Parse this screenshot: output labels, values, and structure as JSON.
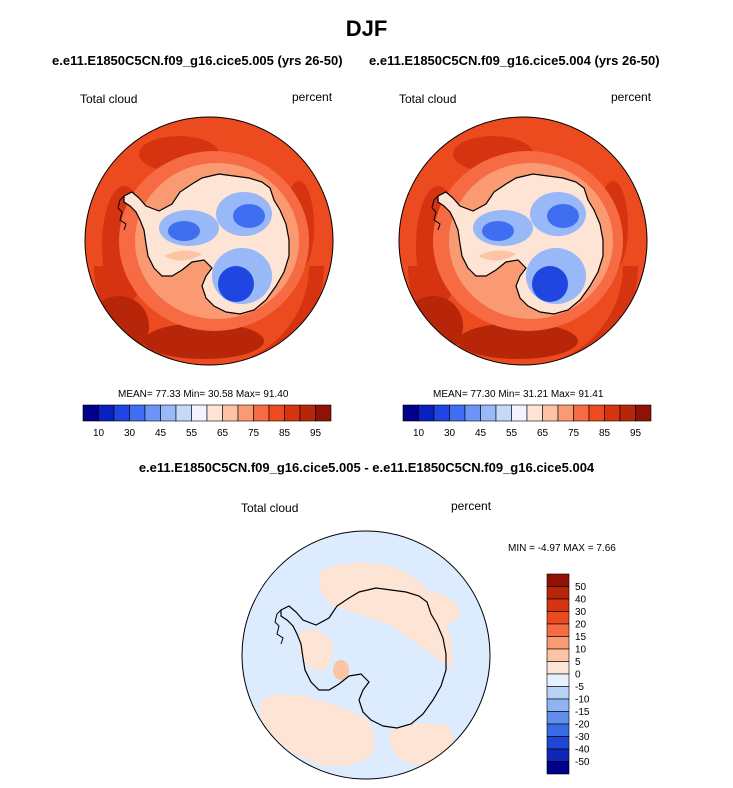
{
  "figure": {
    "title": "DJF",
    "top_subtitle_left": "e.e11.E1850C5CN.f09_g16.cice5.005 (yrs 26-50)",
    "top_subtitle_right": "e.e11.E1850C5CN.f09_g16.cice5.004 (yrs 26-50)",
    "diff_subtitle": "e.e11.E1850C5CN.f09_g16.cice5.005 - e.e11.E1850C5CN.f09_g16.cice5.004"
  },
  "panels": {
    "left": {
      "variable": "Total cloud",
      "units": "percent",
      "stats": "MEAN=  77.33  Min=  30.58  Max=  91.40"
    },
    "right": {
      "variable": "Total cloud",
      "units": "percent",
      "stats": "MEAN=  77.30  Min=  31.21  Max=  91.41"
    },
    "diff": {
      "variable": "Total cloud",
      "units": "percent",
      "stats": "MIN =  -4.97 MAX =   7.66"
    }
  },
  "chart_data": [
    {
      "type": "heatmap",
      "projection": "south polar stereographic",
      "variable": "Total cloud",
      "units": "percent",
      "mean": 77.33,
      "min": 30.58,
      "max": 91.4,
      "colorbar": {
        "tick_labels": [
          "10",
          "30",
          "45",
          "55",
          "65",
          "75",
          "85",
          "95"
        ],
        "colors": [
          "#00008b",
          "#0a1fc0",
          "#1f46e0",
          "#3f6ef0",
          "#6b95f5",
          "#98b8f8",
          "#c6d9fb",
          "#f2f5ff",
          "#fde4d4",
          "#fcc3a4",
          "#fa9a72",
          "#f66b44",
          "#ec4a1f",
          "#d63411",
          "#b8260a",
          "#8f1204"
        ]
      }
    },
    {
      "type": "heatmap",
      "projection": "south polar stereographic",
      "variable": "Total cloud",
      "units": "percent",
      "mean": 77.3,
      "min": 31.21,
      "max": 91.41,
      "colorbar": {
        "tick_labels": [
          "10",
          "30",
          "45",
          "55",
          "65",
          "75",
          "85",
          "95"
        ],
        "colors": [
          "#00008b",
          "#0a1fc0",
          "#1f46e0",
          "#3f6ef0",
          "#6b95f5",
          "#98b8f8",
          "#c6d9fb",
          "#f2f5ff",
          "#fde4d4",
          "#fcc3a4",
          "#fa9a72",
          "#f66b44",
          "#ec4a1f",
          "#d63411",
          "#b8260a",
          "#8f1204"
        ]
      }
    },
    {
      "type": "heatmap",
      "projection": "south polar stereographic",
      "variable": "Total cloud",
      "units": "percent",
      "min": -4.97,
      "max": 7.66,
      "colorbar": {
        "tick_labels": [
          "50",
          "40",
          "30",
          "20",
          "15",
          "10",
          "5",
          "0",
          "-5",
          "-10",
          "-15",
          "-20",
          "-30",
          "-40",
          "-50"
        ],
        "colors": [
          "#8f1204",
          "#b8260a",
          "#d63411",
          "#ec4a1f",
          "#f66b44",
          "#fa9a72",
          "#fcc3a4",
          "#fde4d4",
          "#e8f1ff",
          "#b9d2f8",
          "#8fb3f3",
          "#5f8eec",
          "#3a6ae3",
          "#1f46d6",
          "#0f26b8",
          "#00008b"
        ]
      }
    }
  ]
}
